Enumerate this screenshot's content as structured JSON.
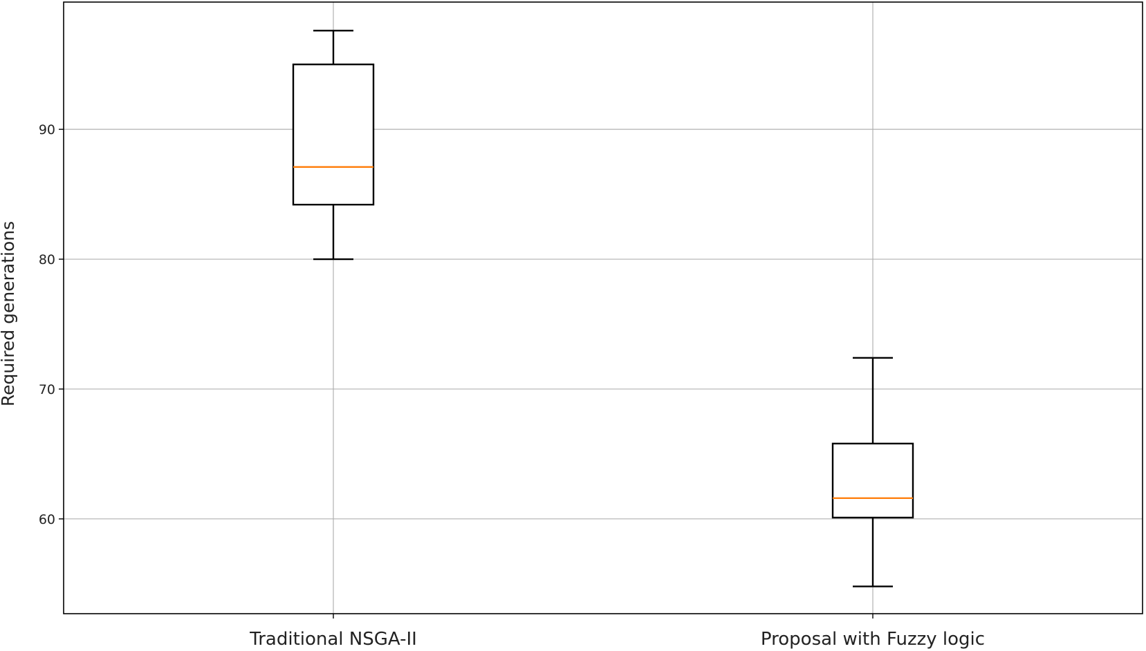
{
  "chart_data": {
    "type": "box",
    "ylabel": "Required generations",
    "xlabel": "",
    "ylim": [
      52.7,
      99.8
    ],
    "yticks": [
      60,
      70,
      80,
      90
    ],
    "grid": true,
    "categories": [
      "Traditional NSGA-II",
      "Proposal with Fuzzy logic"
    ],
    "boxes": [
      {
        "category": "Traditional NSGA-II",
        "whisker_low": 80,
        "q1": 84.2,
        "median": 87.1,
        "q3": 95,
        "whisker_high": 97.6
      },
      {
        "category": "Proposal with Fuzzy logic",
        "whisker_low": 54.8,
        "q1": 60.1,
        "median": 61.6,
        "q3": 65.8,
        "whisker_high": 72.4
      }
    ],
    "colors": {
      "box": "#000000",
      "median": "#ff7f0e",
      "grid": "#b0b0b0",
      "frame": "#000000"
    }
  }
}
